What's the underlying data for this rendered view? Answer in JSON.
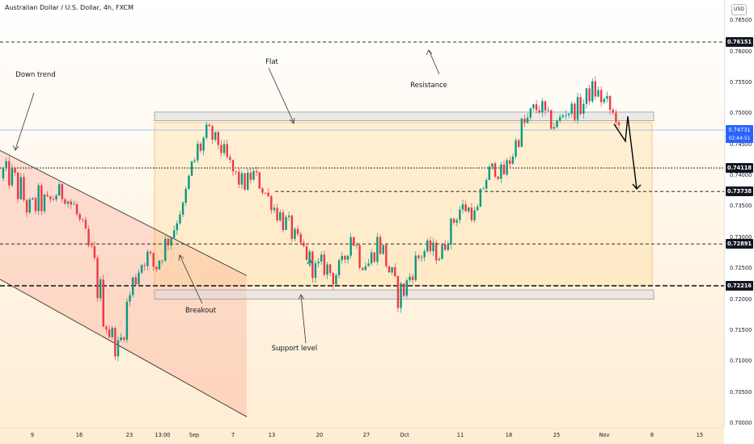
{
  "header": {
    "title": "Australian Dollar / U.S. Dollar, 4h, FXCM",
    "currency_badge": "USD"
  },
  "chart_data": {
    "type": "candlestick",
    "title": "Australian Dollar / U.S. Dollar, 4h, FXCM",
    "y_axis": {
      "ticks": [
        "0.76500",
        "0.76000",
        "0.75500",
        "0.75000",
        "0.74500",
        "0.74000",
        "0.73500",
        "0.73000",
        "0.72500",
        "0.72000",
        "0.71500",
        "0.71000",
        "0.70500",
        "0.70000"
      ],
      "range": [
        0.6995,
        0.769
      ]
    },
    "x_axis": {
      "ticks": [
        "9",
        "16",
        "23",
        "13:00",
        "Sep",
        "7",
        "13",
        "20",
        "27",
        "Oct",
        "11",
        "18",
        "25",
        "Nov",
        "8",
        "15"
      ]
    },
    "price_levels": [
      {
        "label": "0.76151",
        "value": 0.76151,
        "style": "dashed"
      },
      {
        "label": "0.74118",
        "value": 0.74118,
        "style": "dotted"
      },
      {
        "label": "0.73738",
        "value": 0.73738,
        "style": "dashed"
      },
      {
        "label": "0.72891",
        "value": 0.72891,
        "style": "dashed"
      },
      {
        "label": "0.72216",
        "value": 0.72216,
        "style": "bold-dashed"
      }
    ],
    "current_price": {
      "value": "0.74731",
      "countdown": "02:44:51"
    },
    "zones": [
      {
        "name": "Resistance zone",
        "from": 0.7488,
        "to": 0.7502
      },
      {
        "name": "Support zone",
        "from": 0.72,
        "to": 0.7215
      },
      {
        "name": "Flat range",
        "from": 0.7222,
        "to": 0.7485
      }
    ],
    "annotations": [
      "Down trend",
      "Flat",
      "Resistance",
      "Breakout",
      "Support level"
    ],
    "path": [
      [
        0.7395,
        0.7418
      ],
      [
        0.7375,
        0.7415
      ],
      [
        0.734,
        0.74
      ],
      [
        0.7325,
        0.736
      ],
      [
        0.7335,
        0.738
      ],
      [
        0.734,
        0.7365
      ],
      [
        0.736,
        0.7385
      ],
      [
        0.736,
        0.7372
      ],
      [
        0.732,
        0.737
      ],
      [
        0.7285,
        0.732
      ],
      [
        0.723,
        0.729
      ],
      [
        0.7165,
        0.723
      ],
      [
        0.7122,
        0.7165
      ],
      [
        0.7106,
        0.713
      ],
      [
        0.717,
        0.7225
      ],
      [
        0.7225,
        0.727
      ],
      [
        0.726,
        0.7285
      ],
      [
        0.723,
        0.727
      ],
      [
        0.727,
        0.73
      ],
      [
        0.73,
        0.732
      ],
      [
        0.735,
        0.734
      ],
      [
        0.739,
        0.742
      ],
      [
        0.742,
        0.7475
      ],
      [
        0.745,
        0.748
      ],
      [
        0.745,
        0.746
      ],
      [
        0.741,
        0.744
      ],
      [
        0.7385,
        0.741
      ],
      [
        0.7375,
        0.7395
      ],
      [
        0.7395,
        0.741
      ],
      [
        0.737,
        0.7395
      ],
      [
        0.735,
        0.736
      ],
      [
        0.732,
        0.735
      ],
      [
        0.73,
        0.733
      ],
      [
        0.7285,
        0.73
      ],
      [
        0.726,
        0.7285
      ],
      [
        0.723,
        0.726
      ],
      [
        0.724,
        0.727
      ],
      [
        0.7225,
        0.725
      ],
      [
        0.724,
        0.7265
      ],
      [
        0.7295,
        0.7315
      ],
      [
        0.725,
        0.729
      ],
      [
        0.7245,
        0.727
      ],
      [
        0.728,
        0.731
      ],
      [
        0.724,
        0.728
      ],
      [
        0.7185,
        0.723
      ],
      [
        0.72,
        0.723
      ],
      [
        0.724,
        0.727
      ],
      [
        0.7265,
        0.729
      ],
      [
        0.727,
        0.729
      ],
      [
        0.726,
        0.728
      ],
      [
        0.73,
        0.732
      ],
      [
        0.733,
        0.736
      ],
      [
        0.734,
        0.7355
      ],
      [
        0.7325,
        0.734
      ],
      [
        0.738,
        0.741
      ],
      [
        0.7405,
        0.742
      ],
      [
        0.739,
        0.741
      ],
      [
        0.742,
        0.7445
      ],
      [
        0.746,
        0.749
      ],
      [
        0.747,
        0.751
      ],
      [
        0.75,
        0.753
      ],
      [
        0.748,
        0.75
      ],
      [
        0.747,
        0.749
      ],
      [
        0.7495,
        0.7515
      ],
      [
        0.7495,
        0.7515
      ],
      [
        0.75,
        0.753
      ],
      [
        0.753,
        0.755
      ],
      [
        0.751,
        0.754
      ],
      [
        0.749,
        0.752
      ],
      [
        0.749,
        0.7475
      ]
    ],
    "projection": [
      [
        0.7475,
        0.7455
      ],
      [
        0.7455,
        0.7495
      ],
      [
        0.7495,
        0.7378
      ]
    ]
  }
}
